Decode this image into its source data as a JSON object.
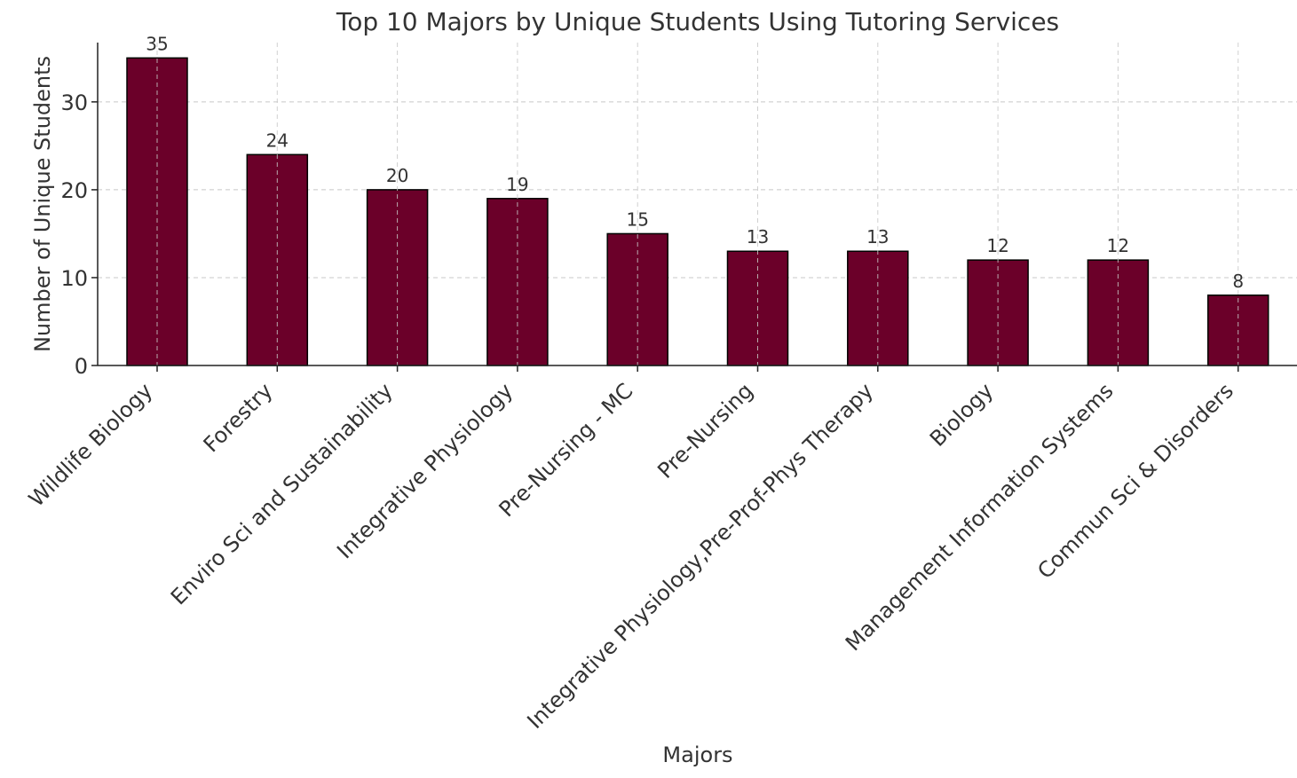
{
  "chart_data": {
    "type": "bar",
    "title": "Top 10 Majors by Unique Students Using Tutoring Services",
    "xlabel": "Majors",
    "ylabel": "Number of Unique Students",
    "categories": [
      "Wildlife Biology",
      "Forestry",
      "Enviro Sci and Sustainability",
      "Integrative Physiology",
      "Pre-Nursing - MC",
      "Pre-Nursing",
      "Integrative Physiology,Pre-Prof-Phys Therapy",
      "Biology",
      "Management Information Systems",
      "Commun Sci & Disorders"
    ],
    "values": [
      35,
      24,
      20,
      19,
      15,
      13,
      13,
      12,
      12,
      8
    ],
    "ylim": [
      0,
      36.75
    ],
    "yticks": [
      0,
      10,
      20,
      30
    ],
    "grid": true,
    "colors": {
      "bar": "#6b0029",
      "bar_edge": "#000000",
      "grid": "#c8c8c8",
      "text": "#333333"
    }
  }
}
